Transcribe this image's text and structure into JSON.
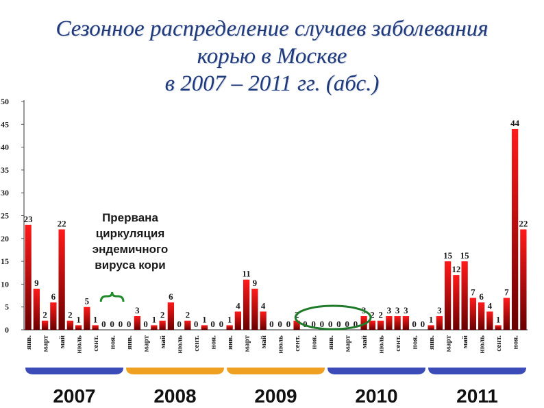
{
  "title": {
    "line1": "Сезонное распределение случаев заболевания",
    "line2": "корью в Москве",
    "line3": "в 2007 – 2011 гг. (абс.)"
  },
  "annotation": {
    "line1": "Прервана",
    "line2": "циркуляция",
    "line3": "эндемичного",
    "line4": "вируса кори"
  },
  "colors": {
    "bar_top": "#ff1a1a",
    "bar_bottom": "#6a0000",
    "bracket": "#1f8a2a",
    "ellipse": "#1f7a2a",
    "year_bar_blue": "#3b4bb8",
    "year_bar_orange": "#f0a020",
    "title": "#1f3a7a"
  },
  "chart_data": {
    "type": "bar",
    "ylim": [
      0,
      50
    ],
    "yticks": [
      "0",
      "5",
      "10",
      "15",
      "20",
      "25",
      "30",
      "35",
      "40",
      "45",
      "50"
    ],
    "grid": false,
    "groups": [
      {
        "year": "2007",
        "color": "blue"
      },
      {
        "year": "2008",
        "color": "orange"
      },
      {
        "year": "2009",
        "color": "orange"
      },
      {
        "year": "2010",
        "color": "blue"
      },
      {
        "year": "2011",
        "color": "blue"
      }
    ],
    "bars": [
      {
        "year": "2007",
        "label": "янв.",
        "value": 23
      },
      {
        "year": "2007",
        "label": "",
        "value": 9
      },
      {
        "year": "2007",
        "label": "март",
        "value": 2
      },
      {
        "year": "2007",
        "label": "",
        "value": 6
      },
      {
        "year": "2007",
        "label": "май",
        "value": 22
      },
      {
        "year": "2007",
        "label": "",
        "value": 2
      },
      {
        "year": "2007",
        "label": "июль",
        "value": 1
      },
      {
        "year": "2007",
        "label": "",
        "value": 5
      },
      {
        "year": "2007",
        "label": "сент.",
        "value": 1
      },
      {
        "year": "2007",
        "label": "",
        "value": 0
      },
      {
        "year": "2007",
        "label": "ноя.",
        "value": 0
      },
      {
        "year": "2007",
        "label": "",
        "value": 0
      },
      {
        "year": "2008",
        "label": "янв.",
        "value": 0
      },
      {
        "year": "2008",
        "label": "",
        "value": 3
      },
      {
        "year": "2008",
        "label": "март",
        "value": 0
      },
      {
        "year": "2008",
        "label": "",
        "value": 1
      },
      {
        "year": "2008",
        "label": "май",
        "value": 2
      },
      {
        "year": "2008",
        "label": "",
        "value": 6
      },
      {
        "year": "2008",
        "label": "июль",
        "value": 0
      },
      {
        "year": "2008",
        "label": "",
        "value": 2
      },
      {
        "year": "2008",
        "label": "сент.",
        "value": 0
      },
      {
        "year": "2008",
        "label": "",
        "value": 1
      },
      {
        "year": "2008",
        "label": "ноя.",
        "value": 0
      },
      {
        "year": "2008",
        "label": "",
        "value": 0
      },
      {
        "year": "2009",
        "label": "янв.",
        "value": 1
      },
      {
        "year": "2009",
        "label": "",
        "value": 4
      },
      {
        "year": "2009",
        "label": "март",
        "value": 11
      },
      {
        "year": "2009",
        "label": "",
        "value": 9
      },
      {
        "year": "2009",
        "label": "май",
        "value": 4
      },
      {
        "year": "2009",
        "label": "",
        "value": 0
      },
      {
        "year": "2009",
        "label": "июль",
        "value": 0
      },
      {
        "year": "2009",
        "label": "",
        "value": 0
      },
      {
        "year": "2009",
        "label": "сент.",
        "value": 2
      },
      {
        "year": "2009",
        "label": "",
        "value": 0
      },
      {
        "year": "2009",
        "label": "ноя.",
        "value": 0
      },
      {
        "year": "2009",
        "label": "",
        "value": 0
      },
      {
        "year": "2010",
        "label": "янв.",
        "value": 0
      },
      {
        "year": "2010",
        "label": "",
        "value": 0
      },
      {
        "year": "2010",
        "label": "март",
        "value": 0
      },
      {
        "year": "2010",
        "label": "",
        "value": 0
      },
      {
        "year": "2010",
        "label": "май",
        "value": 3
      },
      {
        "year": "2010",
        "label": "",
        "value": 2
      },
      {
        "year": "2010",
        "label": "июль",
        "value": 2
      },
      {
        "year": "2010",
        "label": "",
        "value": 3
      },
      {
        "year": "2010",
        "label": "сент.",
        "value": 3
      },
      {
        "year": "2010",
        "label": "",
        "value": 3
      },
      {
        "year": "2010",
        "label": "ноя.",
        "value": 0
      },
      {
        "year": "2010",
        "label": "",
        "value": 0
      },
      {
        "year": "2011",
        "label": "янв.",
        "value": 1
      },
      {
        "year": "2011",
        "label": "",
        "value": 3
      },
      {
        "year": "2011",
        "label": "март",
        "value": 15
      },
      {
        "year": "2011",
        "label": "",
        "value": 12
      },
      {
        "year": "2011",
        "label": "май",
        "value": 15
      },
      {
        "year": "2011",
        "label": "",
        "value": 7
      },
      {
        "year": "2011",
        "label": "июль",
        "value": 6
      },
      {
        "year": "2011",
        "label": "",
        "value": 4
      },
      {
        "year": "2011",
        "label": "сент.",
        "value": 1
      },
      {
        "year": "2011",
        "label": "",
        "value": 7
      },
      {
        "year": "2011",
        "label": "ноя.",
        "value": 44
      },
      {
        "year": "2011",
        "label": "",
        "value": 22
      }
    ]
  }
}
